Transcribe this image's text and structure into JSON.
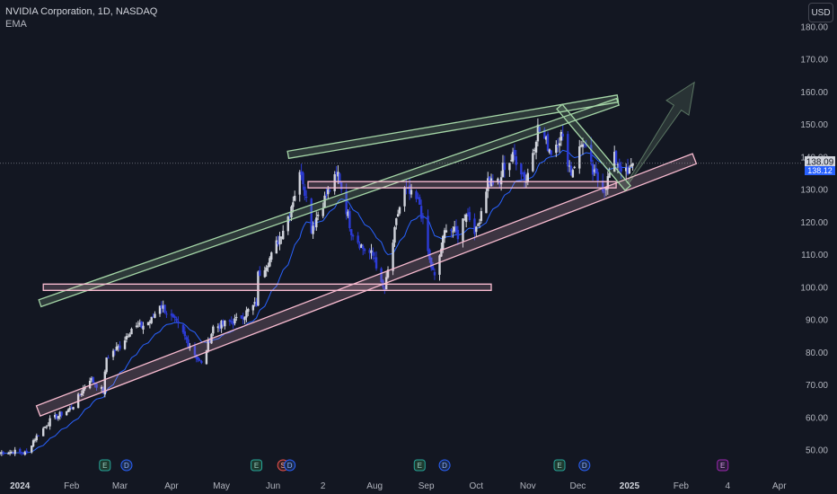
{
  "legend": {
    "title": "NVIDIA Corporation, 1D, NASDAQ",
    "indicator": "EMA"
  },
  "currency_label": "USD",
  "price_labels": {
    "last": "138.09",
    "ema": "138.12"
  },
  "colors": {
    "background": "#131722",
    "up_candle": "#d1d4dc",
    "down_candle": "#2c3bd6",
    "ema_line": "#2962ff",
    "resistance_channel": "#a5d6a7",
    "support_channel": "#f8bbd0",
    "axis_text": "#b2b5be"
  },
  "events": [
    {
      "date": "2024-02-21",
      "type": "E"
    },
    {
      "date": "2024-03-05",
      "type": "D"
    },
    {
      "date": "2024-05-22",
      "type": "E"
    },
    {
      "date": "2024-06-07",
      "type": "S"
    },
    {
      "date": "2024-06-11",
      "type": "D"
    },
    {
      "date": "2024-08-28",
      "type": "E"
    },
    {
      "date": "2024-09-12",
      "type": "D"
    },
    {
      "date": "2024-11-20",
      "type": "E"
    },
    {
      "date": "2024-12-05",
      "type": "D"
    },
    {
      "date": "2025-02-26",
      "type": "E"
    }
  ],
  "chart_data": {
    "type": "candlestick",
    "title": "NVIDIA Corporation, 1D, NASDAQ",
    "x_axis_type": "date",
    "x_range": [
      "2023-12-20",
      "2025-04-20"
    ],
    "ylim": [
      45,
      185
    ],
    "yticks": [
      50,
      60,
      70,
      80,
      90,
      100,
      110,
      120,
      130,
      140,
      150,
      160,
      170,
      180
    ],
    "xticks": [
      {
        "date": "2024-01-01",
        "label": "2024"
      },
      {
        "date": "2024-02-01",
        "label": "Feb"
      },
      {
        "date": "2024-03-01",
        "label": "Mar"
      },
      {
        "date": "2024-04-01",
        "label": "Apr"
      },
      {
        "date": "2024-05-01",
        "label": "May"
      },
      {
        "date": "2024-06-01",
        "label": "Jun"
      },
      {
        "date": "2024-07-01",
        "label": "2"
      },
      {
        "date": "2024-08-01",
        "label": "Aug"
      },
      {
        "date": "2024-09-01",
        "label": "Sep"
      },
      {
        "date": "2024-10-01",
        "label": "Oct"
      },
      {
        "date": "2024-11-01",
        "label": "Nov"
      },
      {
        "date": "2024-12-01",
        "label": "Dec"
      },
      {
        "date": "2025-01-01",
        "label": "2025"
      },
      {
        "date": "2025-02-01",
        "label": "Feb"
      },
      {
        "date": "2025-03-01",
        "label": "4"
      },
      {
        "date": "2025-04-01",
        "label": "Apr"
      }
    ],
    "close_path": [
      [
        "2023-12-20",
        49.2
      ],
      [
        "2023-12-29",
        49.5
      ],
      [
        "2024-01-05",
        49.0
      ],
      [
        "2024-01-09",
        53.0
      ],
      [
        "2024-01-19",
        59.0
      ],
      [
        "2024-02-01",
        63.0
      ],
      [
        "2024-02-12",
        72.0
      ],
      [
        "2024-02-20",
        68.0
      ],
      [
        "2024-02-22",
        78.5
      ],
      [
        "2024-03-01",
        82.0
      ],
      [
        "2024-03-08",
        87.5
      ],
      [
        "2024-03-14",
        88.0
      ],
      [
        "2024-03-20",
        90.0
      ],
      [
        "2024-03-25",
        95.0
      ],
      [
        "2024-04-05",
        88.0
      ],
      [
        "2024-04-19",
        76.2
      ],
      [
        "2024-04-26",
        87.7
      ],
      [
        "2024-05-10",
        89.8
      ],
      [
        "2024-05-22",
        94.9
      ],
      [
        "2024-05-23",
        103.8
      ],
      [
        "2024-05-31",
        109.6
      ],
      [
        "2024-06-10",
        121.8
      ],
      [
        "2024-06-18",
        136.0
      ],
      [
        "2024-06-24",
        118.1
      ],
      [
        "2024-07-03",
        128.3
      ],
      [
        "2024-07-10",
        134.9
      ],
      [
        "2024-07-18",
        117.5
      ],
      [
        "2024-07-25",
        112.0
      ],
      [
        "2024-08-01",
        109.2
      ],
      [
        "2024-08-05",
        100.4
      ],
      [
        "2024-08-07",
        98.9
      ],
      [
        "2024-08-15",
        122.8
      ],
      [
        "2024-08-19",
        130.0
      ],
      [
        "2024-08-28",
        125.6
      ],
      [
        "2024-09-03",
        108.0
      ],
      [
        "2024-09-06",
        102.8
      ],
      [
        "2024-09-13",
        119.1
      ],
      [
        "2024-09-20",
        116.0
      ],
      [
        "2024-09-25",
        123.5
      ],
      [
        "2024-10-01",
        117.0
      ],
      [
        "2024-10-08",
        132.9
      ],
      [
        "2024-10-15",
        131.6
      ],
      [
        "2024-10-17",
        136.9
      ],
      [
        "2024-10-24",
        140.4
      ],
      [
        "2024-10-31",
        132.8
      ],
      [
        "2024-11-07",
        148.9
      ],
      [
        "2024-11-15",
        141.9
      ],
      [
        "2024-11-21",
        146.7
      ],
      [
        "2024-11-27",
        135.3
      ],
      [
        "2024-12-04",
        145.1
      ],
      [
        "2024-12-10",
        135.1
      ],
      [
        "2024-12-17",
        130.4
      ],
      [
        "2024-12-20",
        134.7
      ],
      [
        "2024-12-23",
        139.7
      ],
      [
        "2024-12-27",
        137.0
      ],
      [
        "2024-12-31",
        134.3
      ],
      [
        "2025-01-03",
        138.09
      ]
    ],
    "last_close": 138.09,
    "ema_last": 138.12,
    "ema_seed": 49.0,
    "ema_period": 20,
    "drawings": {
      "upper_channel": {
        "p1": [
          "2024-01-13",
          95.1
        ],
        "p2": [
          "2024-12-25",
          157.0
        ],
        "color": "#a5d6a7"
      },
      "top_channel": {
        "p1": [
          "2024-06-10",
          140.7
        ],
        "p2": [
          "2024-12-25",
          158.0
        ],
        "color": "#a5d6a7"
      },
      "support_channel": {
        "p1": [
          "2024-01-12",
          62.0
        ],
        "p2": [
          "2025-02-09",
          139.5
        ],
        "color": "#f8bbd0"
      },
      "mid_range": {
        "p1": [
          "2024-01-15",
          100.0
        ],
        "p2": [
          "2024-10-10",
          100.0
        ],
        "color": "#f8bbd0"
      },
      "upper_range": {
        "p1": [
          "2024-06-22",
          131.5
        ],
        "p2": [
          "2024-12-24",
          131.5
        ],
        "color": "#f8bbd0"
      },
      "short_trend": {
        "p1": [
          "2024-11-20",
          155.5
        ],
        "p2": [
          "2024-12-31",
          130.5
        ],
        "color": "#a5d6a7"
      },
      "projection_arrow": {
        "p1": [
          "2024-12-31",
          132.0
        ],
        "p2": [
          "2025-02-09",
          163.0
        ],
        "color": "#a5d6a7"
      }
    }
  }
}
